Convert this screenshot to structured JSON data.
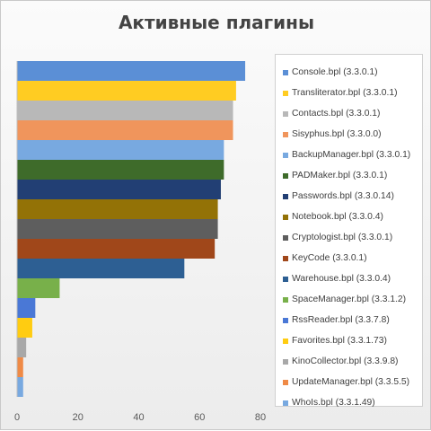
{
  "chart_data": {
    "type": "bar",
    "orientation": "horizontal",
    "title": "Активные плагины",
    "xlim": [
      0,
      80
    ],
    "xticks": [
      "0",
      "20",
      "40",
      "60",
      "80"
    ],
    "grid": false,
    "legend_position": "right",
    "series": [
      {
        "name": "Console.bpl (3.3.0.1)",
        "value": 75,
        "color": "#5b8fd6"
      },
      {
        "name": "Transliterator.bpl (3.3.0.1)",
        "value": 72,
        "color": "#ffcc22"
      },
      {
        "name": "Contacts.bpl (3.3.0.1)",
        "value": 71,
        "color": "#b8b8b8"
      },
      {
        "name": "Sisyphus.bpl (3.3.0.0)",
        "value": 71,
        "color": "#f0955c"
      },
      {
        "name": "BackupManager.bpl (3.3.0.1)",
        "value": 68,
        "color": "#78a9e0"
      },
      {
        "name": "PADMaker.bpl (3.3.0.1)",
        "value": 68,
        "color": "#3e6b2a"
      },
      {
        "name": "Passwords.bpl (3.3.0.14)",
        "value": 67,
        "color": "#223f74"
      },
      {
        "name": "Notebook.bpl (3.3.0.4)",
        "value": 66,
        "color": "#937206"
      },
      {
        "name": "Cryptologist.bpl (3.3.0.1)",
        "value": 66,
        "color": "#5e5e5e"
      },
      {
        "name": "KeyCode (3.3.0.1)",
        "value": 65,
        "color": "#a0471a"
      },
      {
        "name": "Warehouse.bpl (3.3.0.4)",
        "value": 55,
        "color": "#2d5f93"
      },
      {
        "name": "SpaceManager.bpl (3.3.1.2)",
        "value": 14,
        "color": "#78b04a"
      },
      {
        "name": "RssReader.bpl (3.3.7.8)",
        "value": 6,
        "color": "#4a78d6"
      },
      {
        "name": "Favorites.bpl (3.3.1.73)",
        "value": 5,
        "color": "#ffcc11"
      },
      {
        "name": "KinoCollector.bpl (3.3.9.8)",
        "value": 3,
        "color": "#a8a8a8"
      },
      {
        "name": "UpdateManager.bpl (3.3.5.5)",
        "value": 2,
        "color": "#ef8a46"
      },
      {
        "name": "WhoIs.bpl (3.3.1.49)",
        "value": 2,
        "color": "#78a9e0"
      }
    ]
  }
}
